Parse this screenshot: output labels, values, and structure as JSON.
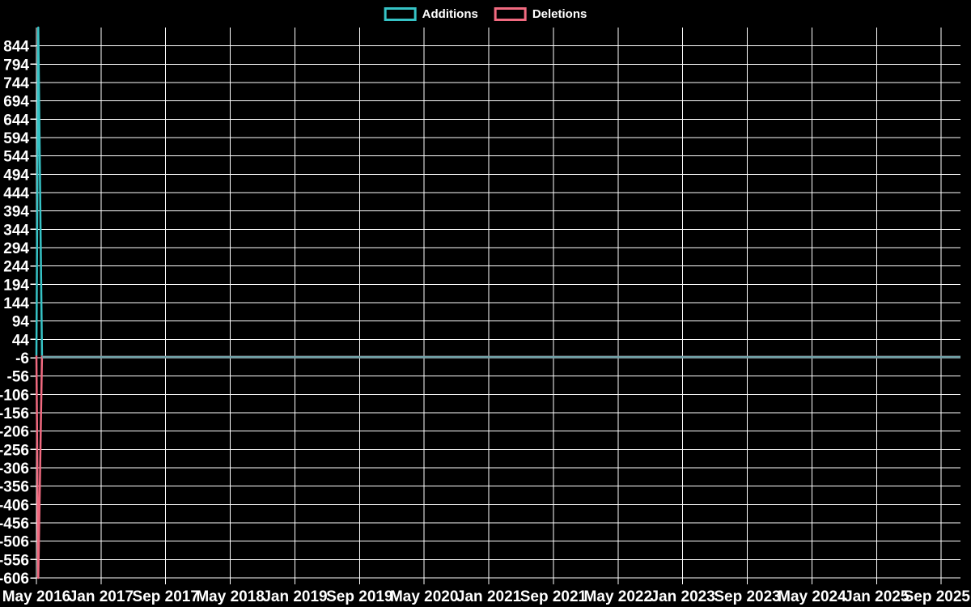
{
  "page": {
    "background": "#000000",
    "text_color": "#ffffff"
  },
  "chart_data": {
    "type": "line",
    "title": "",
    "description": "Weekly additions and deletions over time; large spike in first weeks, then flat at zero",
    "background": "#000000",
    "grid_color": "#ffffff",
    "grid_on": true,
    "legend": {
      "position": "top-center",
      "entries": [
        "Additions",
        "Deletions"
      ]
    },
    "x_axis": {
      "tick_labels": [
        "May 2016",
        "Jan 2017",
        "Sep 2017",
        "May 2018",
        "Jan 2019",
        "Sep 2019",
        "May 2020",
        "Jan 2021",
        "Sep 2021",
        "May 2022",
        "Jan 2023",
        "Sep 2023",
        "May 2024",
        "Jan 2025",
        "Sep 2025"
      ],
      "weeks_per_tick_interval": 34.87,
      "xlim_weeks": [
        0,
        499
      ]
    },
    "y_axis": {
      "tick_labels": [
        "844",
        "794",
        "744",
        "694",
        "644",
        "594",
        "544",
        "494",
        "444",
        "394",
        "344",
        "294",
        "244",
        "194",
        "144",
        "94",
        "44",
        "-6",
        "-56",
        "-106",
        "-156",
        "-206",
        "-256",
        "-306",
        "-356",
        "-406",
        "-456",
        "-506",
        "-556",
        "-606"
      ],
      "tick_start": 844,
      "tick_step": -50,
      "ylim": [
        -606,
        894
      ]
    },
    "series": [
      {
        "name": "Additions",
        "color": "#36c3c6",
        "flat_line_color": "#6fa0a6",
        "points_week_value": [
          [
            0,
            0
          ],
          [
            1,
            894
          ],
          [
            2,
            444
          ],
          [
            3,
            0
          ],
          [
            499,
            0
          ]
        ]
      },
      {
        "name": "Deletions",
        "color": "#f16a80",
        "flat_line_color": "#f16a80",
        "points_week_value": [
          [
            0,
            0
          ],
          [
            1,
            -606
          ],
          [
            2,
            -306
          ],
          [
            3,
            0
          ],
          [
            499,
            0
          ]
        ]
      }
    ]
  }
}
